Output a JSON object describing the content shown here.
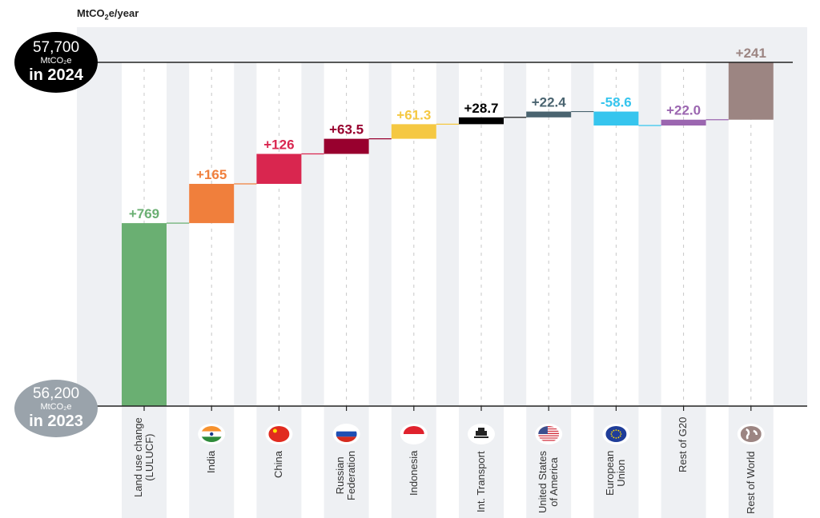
{
  "chart_data": {
    "type": "waterfall",
    "unit_label": "MtCO2e/year",
    "start": {
      "value_label": "56,200",
      "unit": "MtCO₂e",
      "year_label": "in 2023",
      "value": 56200,
      "color": "#9aa3ab"
    },
    "end": {
      "value_label": "57,700",
      "unit": "MtCO₂e",
      "year_label": "in 2024",
      "value": 57700,
      "color": "#000000"
    },
    "categories": [
      {
        "label": "Land use change\n(LULUCF)",
        "value": 769,
        "value_label": "+769",
        "color": "#6aaf72",
        "icon": "none"
      },
      {
        "label": "India",
        "value": 165,
        "value_label": "+165",
        "color": "#f07f3c",
        "icon": "india-flag-icon"
      },
      {
        "label": "China",
        "value": 126,
        "value_label": "+126",
        "color": "#d9264f",
        "icon": "china-flag-icon"
      },
      {
        "label": "Russian\nFederation",
        "value": 63.5,
        "value_label": "+63.5",
        "color": "#98002e",
        "icon": "russia-flag-icon"
      },
      {
        "label": "Indonesia",
        "value": 61.3,
        "value_label": "+61.3",
        "color": "#f5c842",
        "icon": "indonesia-flag-icon"
      },
      {
        "label": "Int. Transport",
        "value": 28.7,
        "value_label": "+28.7",
        "color": "#000000",
        "icon": "ship-icon"
      },
      {
        "label": "United States\nof America",
        "value": 22.4,
        "value_label": "+22.4",
        "color": "#4a6470",
        "icon": "usa-flag-icon"
      },
      {
        "label": "European\nUnion",
        "value": -58.6,
        "value_label": "-58.6",
        "color": "#36c5ee",
        "icon": "eu-flag-icon"
      },
      {
        "label": "Rest of G20",
        "value": 22.0,
        "value_label": "+22.0",
        "color": "#9b66b0",
        "icon": "none"
      },
      {
        "label": "Rest of World",
        "value": 241,
        "value_label": "+241",
        "color": "#9c8582",
        "icon": "globe-icon"
      }
    ],
    "ylim": [
      56200,
      57700
    ],
    "grid": false
  }
}
